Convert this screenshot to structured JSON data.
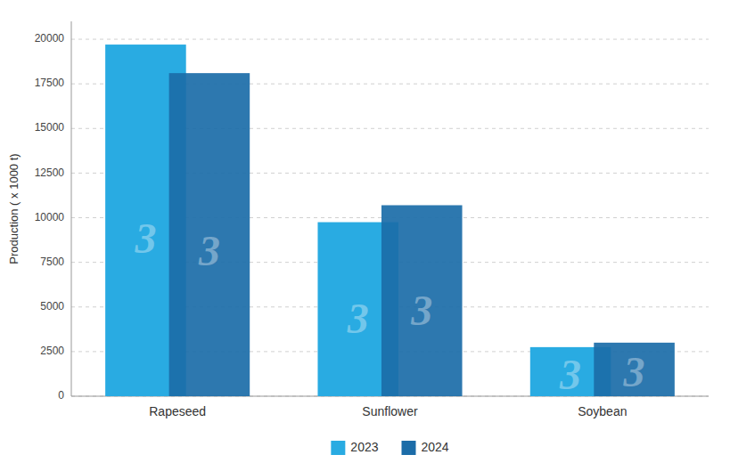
{
  "chart_data": {
    "type": "bar",
    "categories": [
      "Rapeseed",
      "Sunflower",
      "Soybean"
    ],
    "series": [
      {
        "name": "2023",
        "color": "#29ABE2",
        "values": [
          19700,
          9750,
          2750
        ]
      },
      {
        "name": "2024",
        "color": "#1B6CA8",
        "values": [
          18100,
          10700,
          3000
        ]
      }
    ],
    "ylabel": "Production ( x 1000 t)",
    "ylim": [
      0,
      21000
    ],
    "yticks": [
      0,
      2500,
      5000,
      7500,
      10000,
      12500,
      15000,
      17500,
      20000
    ],
    "grid": true,
    "legend": "bottom",
    "watermark": "3"
  }
}
